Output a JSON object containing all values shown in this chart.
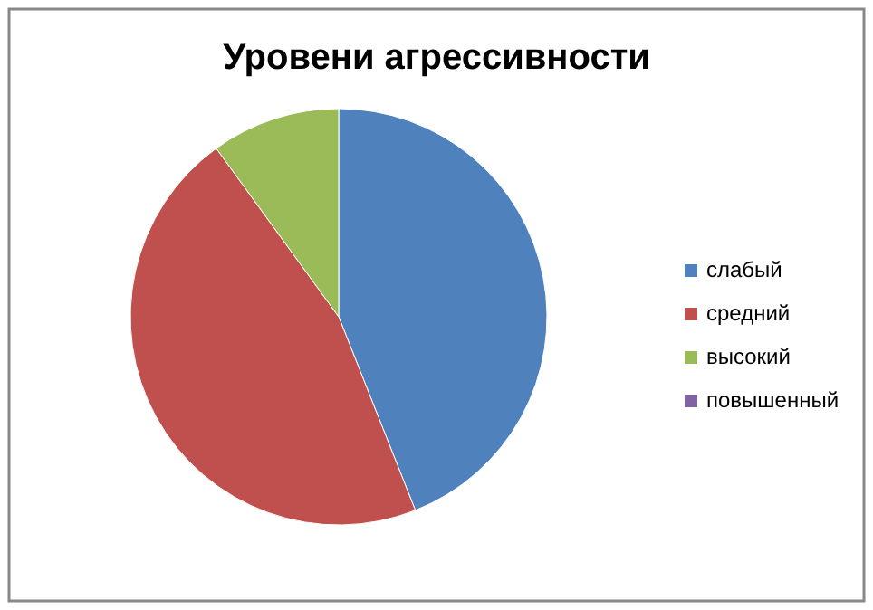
{
  "chart_data": {
    "type": "pie",
    "title": "Уровени агрессивности",
    "categories": [
      "слабый",
      "средний",
      "высокий",
      "повышенный"
    ],
    "values": [
      44,
      46,
      10,
      0
    ],
    "colors": [
      "#4f81bd",
      "#c0504d",
      "#9bbb59",
      "#8064a2"
    ],
    "legend": "right"
  }
}
